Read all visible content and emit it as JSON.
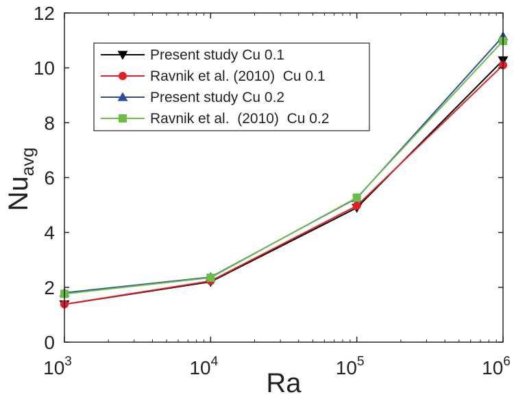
{
  "chart_data": {
    "type": "line",
    "title": "",
    "xlabel": "Ra",
    "ylabel": {
      "base": "Nu",
      "subscript": "avg"
    },
    "x_scale": "log",
    "x": [
      1000,
      10000,
      100000,
      1000000
    ],
    "x_tick_labels": [
      {
        "base": "10",
        "exp": "3"
      },
      {
        "base": "10",
        "exp": "4"
      },
      {
        "base": "10",
        "exp": "5"
      },
      {
        "base": "10",
        "exp": "6"
      }
    ],
    "xlim": [
      1000,
      1000000
    ],
    "ylim": [
      0,
      12
    ],
    "y_ticks": [
      "0",
      "2",
      "4",
      "6",
      "8",
      "10",
      "12"
    ],
    "grid": false,
    "legend_position": "top-left",
    "series": [
      {
        "name": "Present study Cu 0.1",
        "marker": "triangle-down",
        "color": "#000000",
        "values": [
          1.38,
          2.2,
          4.9,
          10.28
        ]
      },
      {
        "name": "Ravnik et al. (2010)  Cu 0.1",
        "marker": "circle",
        "color": "#e41e26",
        "values": [
          1.38,
          2.23,
          4.97,
          10.1
        ]
      },
      {
        "name": "Present study Cu 0.2",
        "marker": "triangle-up",
        "color": "#2b4c9f",
        "values": [
          1.8,
          2.37,
          5.25,
          11.15
        ]
      },
      {
        "name": "Ravnik et al.  (2010)  Cu 0.2",
        "marker": "square",
        "color": "#6abd45",
        "values": [
          1.76,
          2.35,
          5.27,
          10.98
        ]
      }
    ]
  }
}
